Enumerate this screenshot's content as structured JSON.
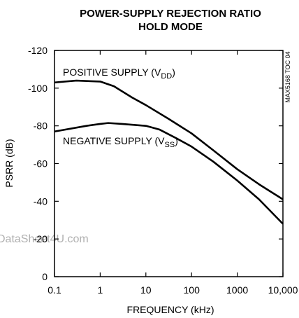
{
  "chart_data": {
    "type": "line",
    "title": [
      "POWER-SUPPLY REJECTION RATIO",
      "HOLD MODE"
    ],
    "xlabel": "FREQUENCY (kHz)",
    "ylabel": "PSRR (dB)",
    "xscale": "log",
    "xlim": [
      0.1,
      10000
    ],
    "xticks": [
      0.1,
      1,
      10,
      100,
      1000,
      {
        "value": 10000,
        "label": "10,000"
      }
    ],
    "ylim": [
      0,
      -120
    ],
    "yticks": [
      0,
      -20,
      -40,
      -60,
      -80,
      -100,
      -120
    ],
    "grid": false,
    "series": [
      {
        "color": "#000000",
        "x": [
          0.1,
          0.3,
          1,
          2,
          5,
          10,
          30,
          100,
          300,
          1000,
          3000,
          10000
        ],
        "values": [
          -103,
          -104,
          -103.5,
          -101,
          -95,
          -91,
          -84,
          -76,
          -67,
          -57,
          -49,
          -41
        ]
      },
      {
        "color": "#000000",
        "x": [
          0.1,
          0.5,
          1,
          1.5,
          3,
          10,
          20,
          50,
          100,
          300,
          1000,
          3000,
          10000
        ],
        "values": [
          -77,
          -80,
          -81,
          -81.5,
          -81,
          -80,
          -78,
          -73,
          -69,
          -61,
          -51,
          -41,
          -28
        ]
      }
    ],
    "annotations": [
      {
        "text": "POSITIVE SUPPLY (V",
        "subscript": "DD",
        "suffix": ")"
      },
      {
        "text": "NEGATIVE SUPPLY (V",
        "subscript": "SS",
        "suffix": ")"
      }
    ],
    "side_note": "MAX5168 TOC 04",
    "watermark": "DataSheet4U.com"
  }
}
